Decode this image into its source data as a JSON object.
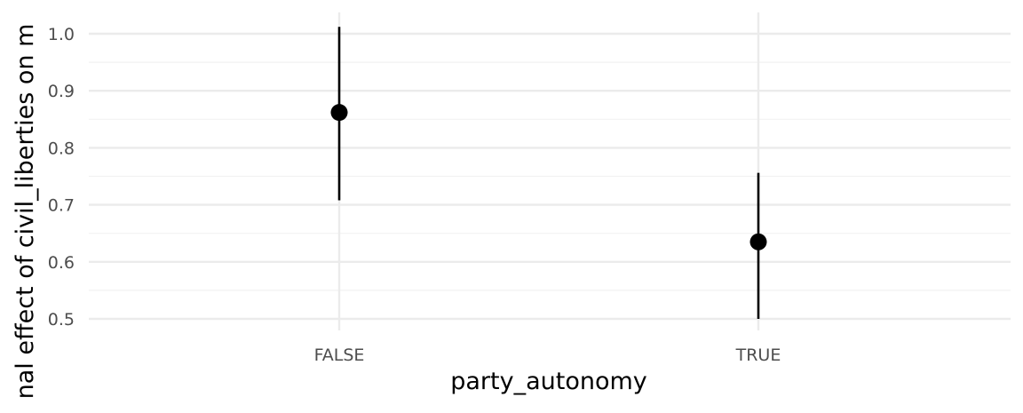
{
  "chart_data": {
    "type": "scatter",
    "title": "",
    "xlabel": "party_autonomy",
    "ylabel": "nal effect of civil_liberties on m",
    "categories": [
      "FALSE",
      "TRUE"
    ],
    "points": [
      {
        "x": "FALSE",
        "estimate": 0.862,
        "lower": 0.708,
        "upper": 1.012
      },
      {
        "x": "TRUE",
        "estimate": 0.635,
        "lower": 0.5,
        "upper": 0.756
      }
    ],
    "ylim": [
      0.5,
      1.0
    ],
    "yticks": [
      0.5,
      0.6,
      0.7,
      0.8,
      0.9,
      1.0
    ],
    "ytick_labels": [
      "0.5",
      "0.6",
      "0.7",
      "0.8",
      "0.9",
      "1.0"
    ],
    "grid": true,
    "legend": "none",
    "colors": {
      "point": "#000000",
      "grid_major": "#ebebeb",
      "grid_minor": "#f2f2f2",
      "tick_text": "#4d4d4d"
    }
  }
}
